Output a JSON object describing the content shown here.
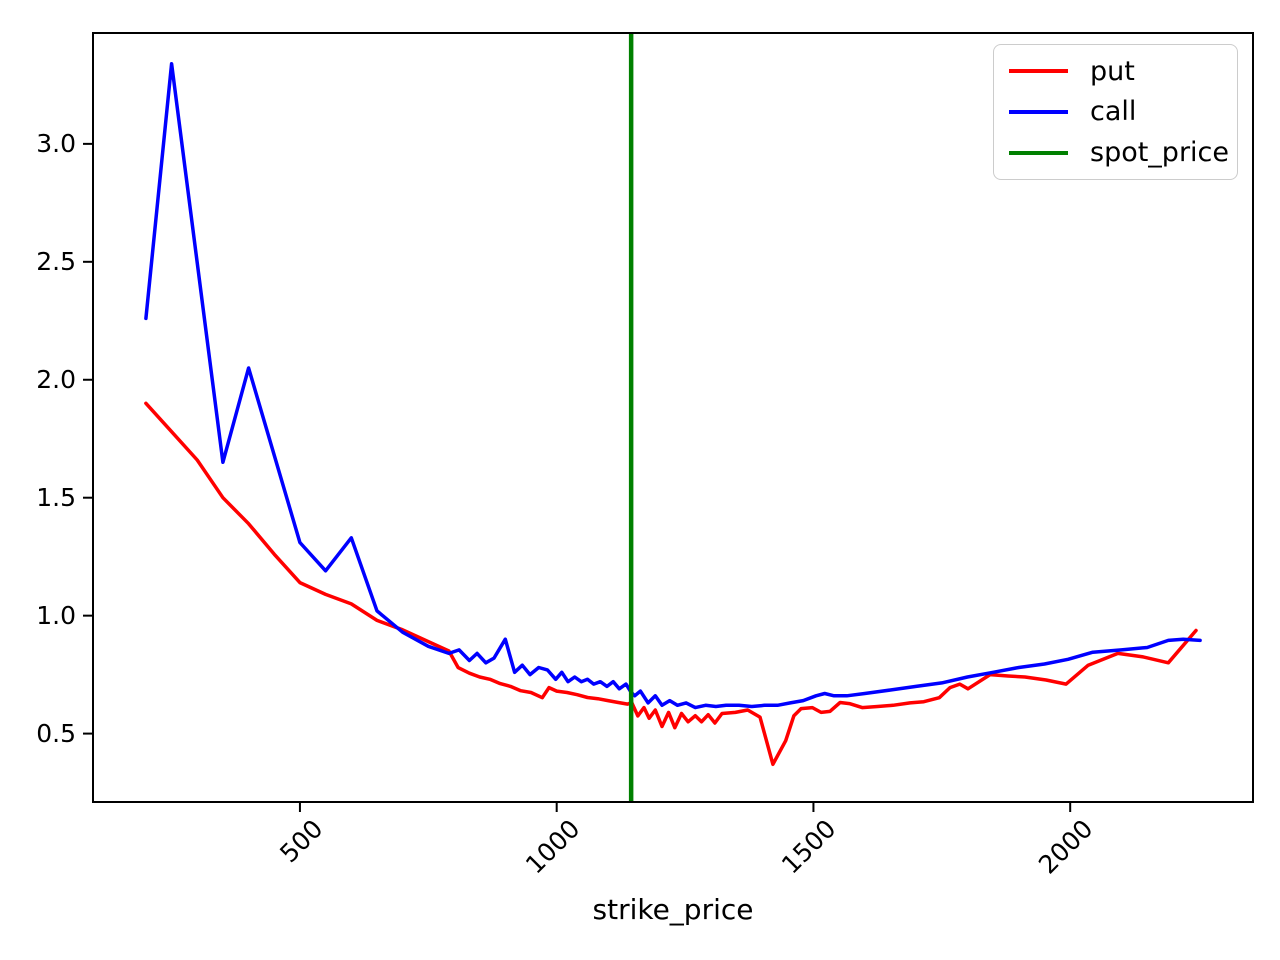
{
  "figure": {
    "background": "#ffffff",
    "axes_edge_color": "#000000",
    "legend_border_color": "#cccccc"
  },
  "chart_data": {
    "type": "line",
    "title": "",
    "xlabel": "strike_price",
    "ylabel": "",
    "grid": false,
    "legend_position": "upper right",
    "xlim": [
      97,
      2356
    ],
    "ylim": [
      0.21,
      3.47
    ],
    "x_ticks": [
      500,
      1000,
      1500,
      2000
    ],
    "y_ticks": [
      0.5,
      1.0,
      1.5,
      2.0,
      2.5,
      3.0
    ],
    "series": [
      {
        "name": "put",
        "color": "#ff0000",
        "points": [
          [
            200,
            1.9
          ],
          [
            250,
            1.78
          ],
          [
            300,
            1.66
          ],
          [
            350,
            1.5
          ],
          [
            400,
            1.39
          ],
          [
            450,
            1.26
          ],
          [
            500,
            1.14
          ],
          [
            550,
            1.09
          ],
          [
            600,
            1.05
          ],
          [
            650,
            0.98
          ],
          [
            700,
            0.94
          ],
          [
            750,
            0.89
          ],
          [
            790,
            0.85
          ],
          [
            808,
            0.78
          ],
          [
            830,
            0.756
          ],
          [
            850,
            0.74
          ],
          [
            870,
            0.73
          ],
          [
            890,
            0.712
          ],
          [
            910,
            0.7
          ],
          [
            930,
            0.682
          ],
          [
            950,
            0.674
          ],
          [
            972,
            0.652
          ],
          [
            985,
            0.695
          ],
          [
            1000,
            0.68
          ],
          [
            1020,
            0.674
          ],
          [
            1040,
            0.665
          ],
          [
            1060,
            0.653
          ],
          [
            1080,
            0.648
          ],
          [
            1100,
            0.64
          ],
          [
            1120,
            0.632
          ],
          [
            1138,
            0.625
          ],
          [
            1146,
            0.632
          ],
          [
            1158,
            0.575
          ],
          [
            1170,
            0.61
          ],
          [
            1180,
            0.565
          ],
          [
            1192,
            0.6
          ],
          [
            1205,
            0.53
          ],
          [
            1218,
            0.59
          ],
          [
            1230,
            0.525
          ],
          [
            1243,
            0.585
          ],
          [
            1256,
            0.55
          ],
          [
            1270,
            0.576
          ],
          [
            1282,
            0.55
          ],
          [
            1295,
            0.58
          ],
          [
            1308,
            0.545
          ],
          [
            1322,
            0.585
          ],
          [
            1348,
            0.59
          ],
          [
            1372,
            0.6
          ],
          [
            1396,
            0.57
          ],
          [
            1421,
            0.37
          ],
          [
            1446,
            0.47
          ],
          [
            1462,
            0.576
          ],
          [
            1476,
            0.606
          ],
          [
            1498,
            0.61
          ],
          [
            1515,
            0.59
          ],
          [
            1532,
            0.594
          ],
          [
            1552,
            0.632
          ],
          [
            1570,
            0.627
          ],
          [
            1595,
            0.61
          ],
          [
            1625,
            0.615
          ],
          [
            1655,
            0.62
          ],
          [
            1688,
            0.63
          ],
          [
            1715,
            0.635
          ],
          [
            1745,
            0.652
          ],
          [
            1766,
            0.695
          ],
          [
            1785,
            0.71
          ],
          [
            1801,
            0.69
          ],
          [
            1844,
            0.75
          ],
          [
            1879,
            0.744
          ],
          [
            1912,
            0.74
          ],
          [
            1953,
            0.727
          ],
          [
            1992,
            0.71
          ],
          [
            2035,
            0.79
          ],
          [
            2093,
            0.84
          ],
          [
            2142,
            0.825
          ],
          [
            2191,
            0.8
          ],
          [
            2245,
            0.937
          ]
        ]
      },
      {
        "name": "call",
        "color": "#0000ff",
        "points": [
          [
            200,
            2.26
          ],
          [
            250,
            3.34
          ],
          [
            350,
            1.65
          ],
          [
            400,
            2.05
          ],
          [
            500,
            1.31
          ],
          [
            550,
            1.19
          ],
          [
            600,
            1.33
          ],
          [
            650,
            1.02
          ],
          [
            700,
            0.93
          ],
          [
            750,
            0.87
          ],
          [
            790,
            0.84
          ],
          [
            810,
            0.855
          ],
          [
            830,
            0.81
          ],
          [
            845,
            0.84
          ],
          [
            862,
            0.8
          ],
          [
            878,
            0.82
          ],
          [
            900,
            0.9
          ],
          [
            918,
            0.76
          ],
          [
            933,
            0.79
          ],
          [
            948,
            0.75
          ],
          [
            965,
            0.78
          ],
          [
            982,
            0.77
          ],
          [
            998,
            0.73
          ],
          [
            1010,
            0.76
          ],
          [
            1022,
            0.72
          ],
          [
            1035,
            0.74
          ],
          [
            1048,
            0.72
          ],
          [
            1060,
            0.73
          ],
          [
            1072,
            0.71
          ],
          [
            1085,
            0.72
          ],
          [
            1098,
            0.7
          ],
          [
            1110,
            0.72
          ],
          [
            1122,
            0.69
          ],
          [
            1135,
            0.71
          ],
          [
            1145,
            0.675
          ],
          [
            1152,
            0.66
          ],
          [
            1163,
            0.68
          ],
          [
            1178,
            0.63
          ],
          [
            1192,
            0.66
          ],
          [
            1205,
            0.62
          ],
          [
            1220,
            0.64
          ],
          [
            1235,
            0.62
          ],
          [
            1252,
            0.63
          ],
          [
            1270,
            0.61
          ],
          [
            1290,
            0.62
          ],
          [
            1310,
            0.615
          ],
          [
            1330,
            0.62
          ],
          [
            1355,
            0.62
          ],
          [
            1380,
            0.615
          ],
          [
            1405,
            0.62
          ],
          [
            1430,
            0.62
          ],
          [
            1455,
            0.63
          ],
          [
            1480,
            0.64
          ],
          [
            1505,
            0.66
          ],
          [
            1522,
            0.67
          ],
          [
            1540,
            0.66
          ],
          [
            1565,
            0.66
          ],
          [
            1600,
            0.67
          ],
          [
            1650,
            0.685
          ],
          [
            1700,
            0.7
          ],
          [
            1750,
            0.715
          ],
          [
            1800,
            0.74
          ],
          [
            1850,
            0.76
          ],
          [
            1900,
            0.78
          ],
          [
            1950,
            0.795
          ],
          [
            1996,
            0.815
          ],
          [
            2044,
            0.845
          ],
          [
            2100,
            0.855
          ],
          [
            2150,
            0.865
          ],
          [
            2191,
            0.895
          ],
          [
            2220,
            0.9
          ],
          [
            2253,
            0.895
          ]
        ]
      },
      {
        "name": "spot_price",
        "color": "#008000",
        "type": "vline",
        "x": 1145
      }
    ]
  }
}
